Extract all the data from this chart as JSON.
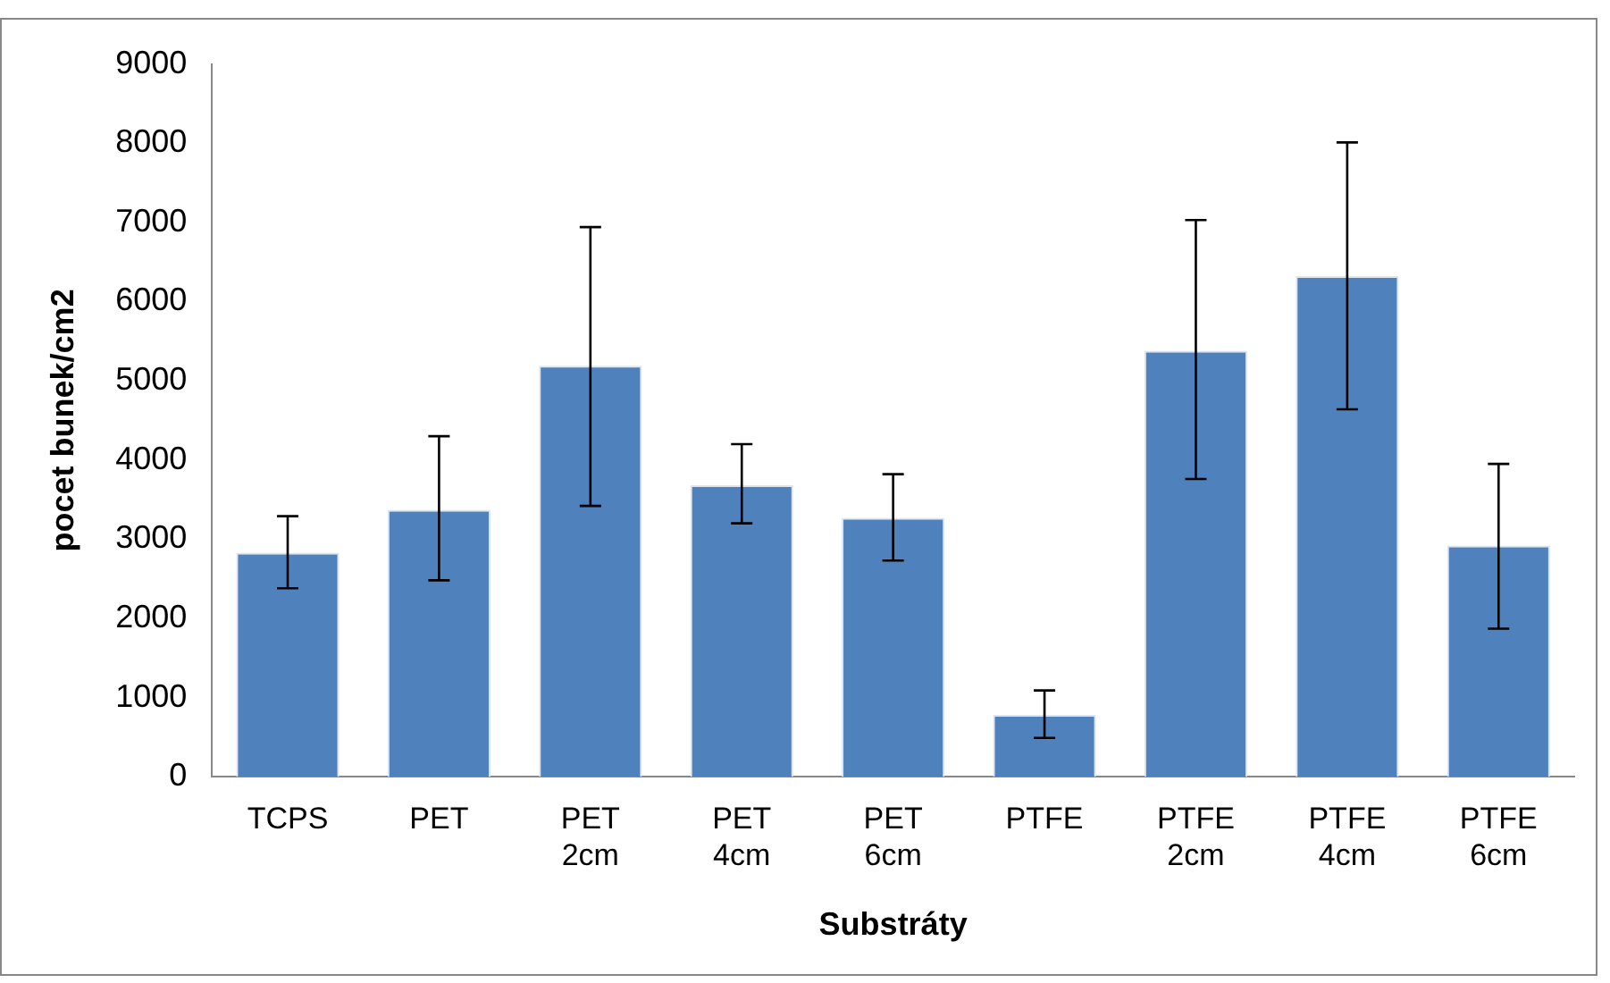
{
  "chart_data": {
    "type": "bar",
    "xlabel": "Substráty",
    "ylabel": "pocet bunek/cm2",
    "categories": [
      "TCPS",
      "PET",
      "PET 2cm",
      "PET 4cm",
      "PET 6cm",
      "PTFE",
      "PTFE 2cm",
      "PTFE 4cm",
      "PTFE 6cm"
    ],
    "values": [
      2830,
      3370,
      5190,
      3680,
      3270,
      780,
      5380,
      6320,
      2920
    ],
    "errors": [
      [
        2380,
        3290
      ],
      [
        2480,
        4300
      ],
      [
        3420,
        6940
      ],
      [
        3200,
        4200
      ],
      [
        2730,
        3820
      ],
      [
        490,
        1090
      ],
      [
        3760,
        7030
      ],
      [
        4640,
        8010
      ],
      [
        1870,
        3950
      ]
    ],
    "color": "#4f81bd",
    "ylim": [
      0,
      9000
    ],
    "yticks": [
      0,
      1000,
      2000,
      3000,
      4000,
      5000,
      6000,
      7000,
      8000,
      9000
    ],
    "grid": false,
    "legend": false
  }
}
